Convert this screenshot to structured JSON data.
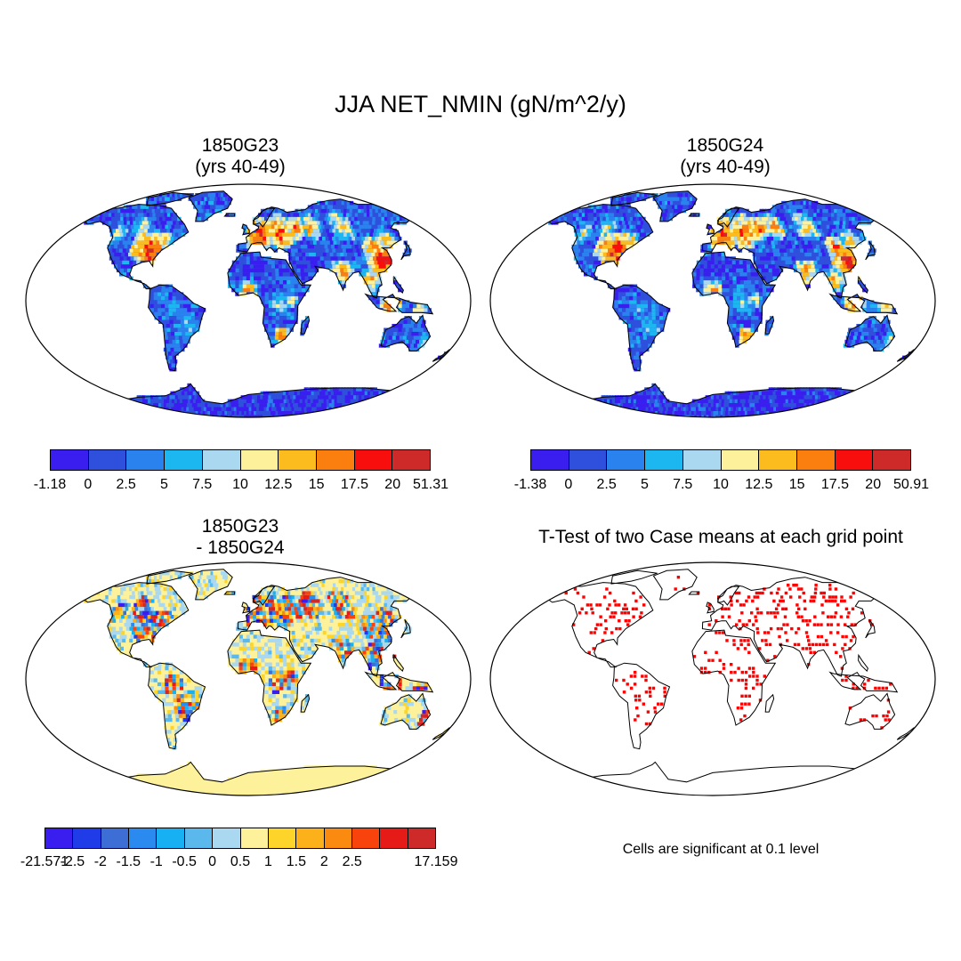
{
  "figure": {
    "title": "JJA NET_NMIN (gN/m^2/y)"
  },
  "panels": [
    {
      "id": "p1",
      "title_line1": "1850G23",
      "title_line2": "(yrs 40-49)",
      "fill": "mean"
    },
    {
      "id": "p2",
      "title_line1": "1850G24",
      "title_line2": "(yrs 40-49)",
      "fill": "mean"
    },
    {
      "id": "p3",
      "title_line1": "1850G23",
      "title_line2": "- 1850G24",
      "fill": "diff"
    },
    {
      "id": "p4",
      "title_line1": "T-Test of two Case means at each grid point",
      "title_line2": "",
      "fill": "ttest"
    }
  ],
  "colorbars": [
    {
      "id": "cb1",
      "colors": [
        "#3a1ef0",
        "#2f4fdd",
        "#2a82ef",
        "#1cb6f0",
        "#a9d8f0",
        "#fdf29b",
        "#fcbc1e",
        "#fb7f0f",
        "#f80f0d",
        "#cf2a2a"
      ],
      "labels": [
        "-1.18",
        "0",
        "2.5",
        "5",
        "7.5",
        "10",
        "12.5",
        "15",
        "17.5",
        "20",
        "51.31"
      ]
    },
    {
      "id": "cb2",
      "colors": [
        "#3a1ef0",
        "#2f4fdd",
        "#2a82ef",
        "#1cb6f0",
        "#a9d8f0",
        "#fdf29b",
        "#fcbc1e",
        "#fb7f0f",
        "#f80f0d",
        "#cf2a2a"
      ],
      "labels": [
        "-1.38",
        "0",
        "2.5",
        "5",
        "7.5",
        "10",
        "12.5",
        "15",
        "17.5",
        "20",
        "50.91"
      ]
    },
    {
      "id": "cb3",
      "colors": [
        "#3a1ef0",
        "#1f3ce8",
        "#3c6ed6",
        "#2a8aef",
        "#17b0f2",
        "#5ab8ec",
        "#a9d8f0",
        "#fdf29b",
        "#fdd52a",
        "#fcb11a",
        "#fb8a10",
        "#f8430d",
        "#e61a16",
        "#cf2a2a"
      ],
      "labels": [
        "-21.571",
        "-2.5",
        "-2",
        "-1.5",
        "-1",
        "-0.5",
        "0",
        "0.5",
        "1",
        "1.5",
        "2",
        "2.5",
        "17.159"
      ],
      "label_slots": [
        0,
        1,
        2,
        3,
        4,
        5,
        6,
        7,
        8,
        9,
        10,
        11,
        13
      ]
    }
  ],
  "ttest_note": "Cells are significant at 0.1 level",
  "palette": {
    "ocean": "#ffffff",
    "mean_land": "#2f4fdd",
    "diff_land": "#fdf29b",
    "significant": "#ff0000"
  }
}
